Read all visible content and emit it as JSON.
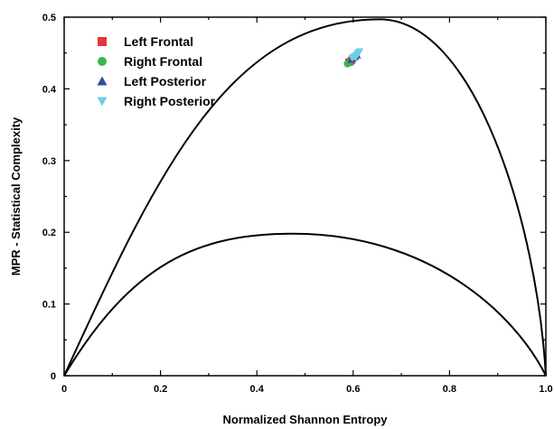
{
  "chart_data": {
    "type": "scatter",
    "title": "",
    "xlabel": "Normalized Shannon Entropy",
    "ylabel": "MPR - Statistical Complexity",
    "xlim": [
      0,
      1.0
    ],
    "ylim": [
      0,
      0.5
    ],
    "x_ticks": [
      {
        "value": 0,
        "label": "0"
      },
      {
        "value": 0.2,
        "label": "0.2"
      },
      {
        "value": 0.4,
        "label": "0.4"
      },
      {
        "value": 0.6,
        "label": "0.6"
      },
      {
        "value": 0.8,
        "label": "0.8"
      },
      {
        "value": 1.0,
        "label": "1.0"
      }
    ],
    "y_ticks": [
      {
        "value": 0,
        "label": "0"
      },
      {
        "value": 0.1,
        "label": "0.1"
      },
      {
        "value": 0.2,
        "label": "0.2"
      },
      {
        "value": 0.3,
        "label": "0.3"
      },
      {
        "value": 0.4,
        "label": "0.4"
      },
      {
        "value": 0.5,
        "label": "0.5"
      }
    ],
    "legend_position": "top-left",
    "grid": false,
    "series": [
      {
        "name": "Left Frontal",
        "marker": "square",
        "color": "#e8323c",
        "points": [
          [
            0.591,
            0.437
          ],
          [
            0.594,
            0.438
          ],
          [
            0.597,
            0.44
          ]
        ]
      },
      {
        "name": "Right Frontal",
        "marker": "circle",
        "color": "#3cb44b",
        "points": [
          [
            0.588,
            0.435
          ],
          [
            0.59,
            0.436
          ],
          [
            0.593,
            0.437
          ]
        ]
      },
      {
        "name": "Left Posterior",
        "marker": "triangle-up",
        "color": "#2e4ea3",
        "points": [
          [
            0.596,
            0.441
          ],
          [
            0.6,
            0.443
          ],
          [
            0.604,
            0.445
          ],
          [
            0.608,
            0.447
          ]
        ]
      },
      {
        "name": "Right Posterior",
        "marker": "triangle-down",
        "color": "#6ccfe0",
        "points": [
          [
            0.598,
            0.443
          ],
          [
            0.602,
            0.445
          ],
          [
            0.606,
            0.447
          ],
          [
            0.61,
            0.449
          ],
          [
            0.613,
            0.452
          ],
          [
            0.605,
            0.444
          ],
          [
            0.609,
            0.45
          ]
        ]
      }
    ],
    "reference_curves": [
      {
        "type": "maximum-complexity",
        "peak": [
          0.655,
          0.497
        ]
      },
      {
        "type": "minimum-complexity",
        "peak": [
          0.475,
          0.198
        ]
      }
    ]
  }
}
